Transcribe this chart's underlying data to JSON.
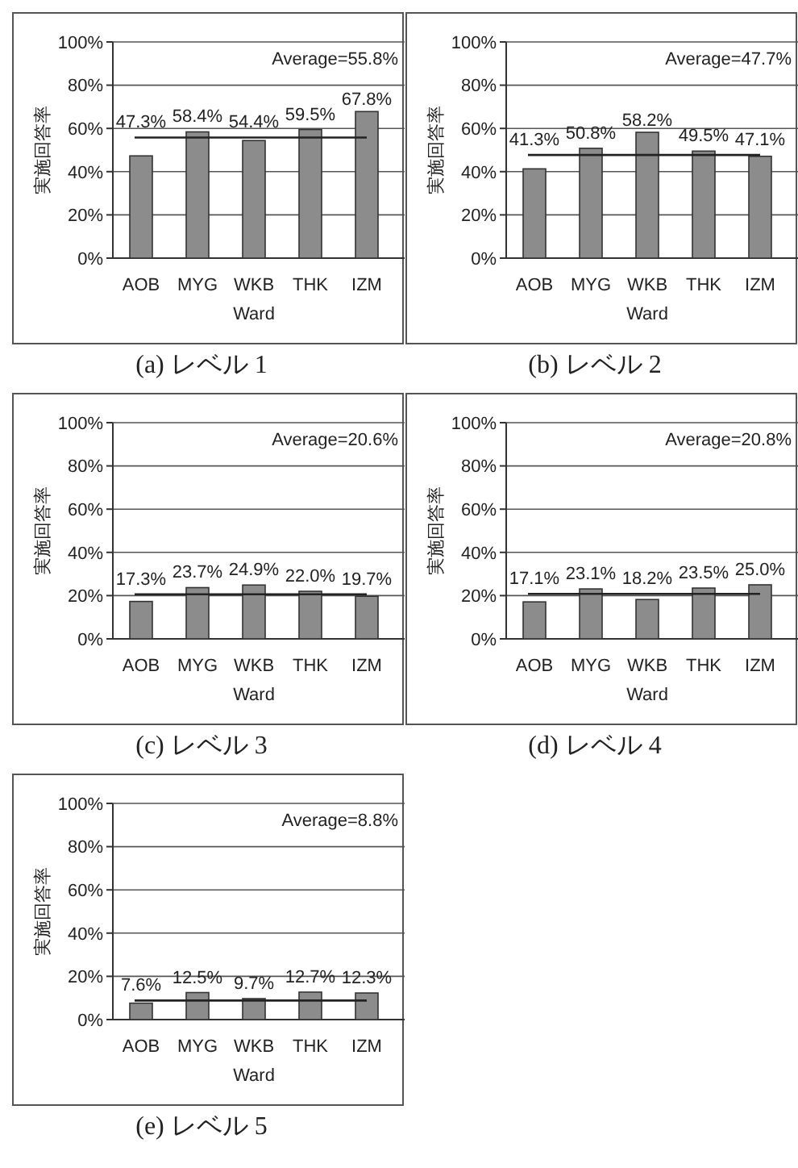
{
  "chart_data": [
    {
      "type": "bar",
      "title": "(a) レベル 1",
      "xlabel": "Ward",
      "ylabel": "実施回答率",
      "categories": [
        "AOB",
        "MYG",
        "WKB",
        "THK",
        "IZM"
      ],
      "values": [
        47.3,
        58.4,
        54.4,
        59.5,
        67.8
      ],
      "value_labels": [
        "47.3%",
        "58.4%",
        "54.4%",
        "59.5%",
        "67.8%"
      ],
      "color": "#8c8c8c",
      "ylim": [
        0,
        100
      ],
      "yticks": [
        {
          "value": 0,
          "label": "0%"
        },
        {
          "value": 20,
          "label": "20%"
        },
        {
          "value": 40,
          "label": "40%"
        },
        {
          "value": 60,
          "label": "60%"
        },
        {
          "value": 80,
          "label": "80%"
        },
        {
          "value": 100,
          "label": "100%"
        }
      ],
      "grid": "y",
      "ref_lines": [
        {
          "axis": "y",
          "value": 55.8,
          "label": "Average=55.8%",
          "color": "#222222"
        }
      ]
    },
    {
      "type": "bar",
      "title": "(b) レベル 2",
      "xlabel": "Ward",
      "ylabel": "実施回答率",
      "categories": [
        "AOB",
        "MYG",
        "WKB",
        "THK",
        "IZM"
      ],
      "values": [
        41.3,
        50.8,
        58.2,
        49.5,
        47.1
      ],
      "value_labels": [
        "41.3%",
        "50.8%",
        "58.2%",
        "49.5%",
        "47.1%"
      ],
      "color": "#8c8c8c",
      "ylim": [
        0,
        100
      ],
      "yticks": [
        {
          "value": 0,
          "label": "0%"
        },
        {
          "value": 20,
          "label": "20%"
        },
        {
          "value": 40,
          "label": "40%"
        },
        {
          "value": 60,
          "label": "60%"
        },
        {
          "value": 80,
          "label": "80%"
        },
        {
          "value": 100,
          "label": "100%"
        }
      ],
      "grid": "y",
      "ref_lines": [
        {
          "axis": "y",
          "value": 47.7,
          "label": "Average=47.7%",
          "color": "#222222"
        }
      ]
    },
    {
      "type": "bar",
      "title": "(c) レベル 3",
      "xlabel": "Ward",
      "ylabel": "実施回答率",
      "categories": [
        "AOB",
        "MYG",
        "WKB",
        "THK",
        "IZM"
      ],
      "values": [
        17.3,
        23.7,
        24.9,
        22.0,
        19.7
      ],
      "value_labels": [
        "17.3%",
        "23.7%",
        "24.9%",
        "22.0%",
        "19.7%"
      ],
      "color": "#8c8c8c",
      "ylim": [
        0,
        100
      ],
      "yticks": [
        {
          "value": 0,
          "label": "0%"
        },
        {
          "value": 20,
          "label": "20%"
        },
        {
          "value": 40,
          "label": "40%"
        },
        {
          "value": 60,
          "label": "60%"
        },
        {
          "value": 80,
          "label": "80%"
        },
        {
          "value": 100,
          "label": "100%"
        }
      ],
      "grid": "y",
      "ref_lines": [
        {
          "axis": "y",
          "value": 20.6,
          "label": "Average=20.6%",
          "color": "#222222"
        }
      ]
    },
    {
      "type": "bar",
      "title": "(d) レベル 4",
      "xlabel": "Ward",
      "ylabel": "実施回答率",
      "categories": [
        "AOB",
        "MYG",
        "WKB",
        "THK",
        "IZM"
      ],
      "values": [
        17.1,
        23.1,
        18.2,
        23.5,
        25.0
      ],
      "value_labels": [
        "17.1%",
        "23.1%",
        "18.2%",
        "23.5%",
        "25.0%"
      ],
      "color": "#8c8c8c",
      "ylim": [
        0,
        100
      ],
      "yticks": [
        {
          "value": 0,
          "label": "0%"
        },
        {
          "value": 20,
          "label": "20%"
        },
        {
          "value": 40,
          "label": "40%"
        },
        {
          "value": 60,
          "label": "60%"
        },
        {
          "value": 80,
          "label": "80%"
        },
        {
          "value": 100,
          "label": "100%"
        }
      ],
      "grid": "y",
      "ref_lines": [
        {
          "axis": "y",
          "value": 20.8,
          "label": "Average=20.8%",
          "color": "#222222"
        }
      ]
    },
    {
      "type": "bar",
      "title": "(e) レベル 5",
      "xlabel": "Ward",
      "ylabel": "実施回答率",
      "categories": [
        "AOB",
        "MYG",
        "WKB",
        "THK",
        "IZM"
      ],
      "values": [
        7.6,
        12.5,
        9.7,
        12.7,
        12.3
      ],
      "value_labels": [
        "7.6%",
        "12.5%",
        "9.7%",
        "12.7%",
        "12.3%"
      ],
      "color": "#8c8c8c",
      "ylim": [
        0,
        100
      ],
      "yticks": [
        {
          "value": 0,
          "label": "0%"
        },
        {
          "value": 20,
          "label": "20%"
        },
        {
          "value": 40,
          "label": "40%"
        },
        {
          "value": 60,
          "label": "60%"
        },
        {
          "value": 80,
          "label": "80%"
        },
        {
          "value": 100,
          "label": "100%"
        }
      ],
      "grid": "y",
      "ref_lines": [
        {
          "axis": "y",
          "value": 8.8,
          "label": "Average=8.8%",
          "color": "#222222"
        }
      ]
    }
  ]
}
